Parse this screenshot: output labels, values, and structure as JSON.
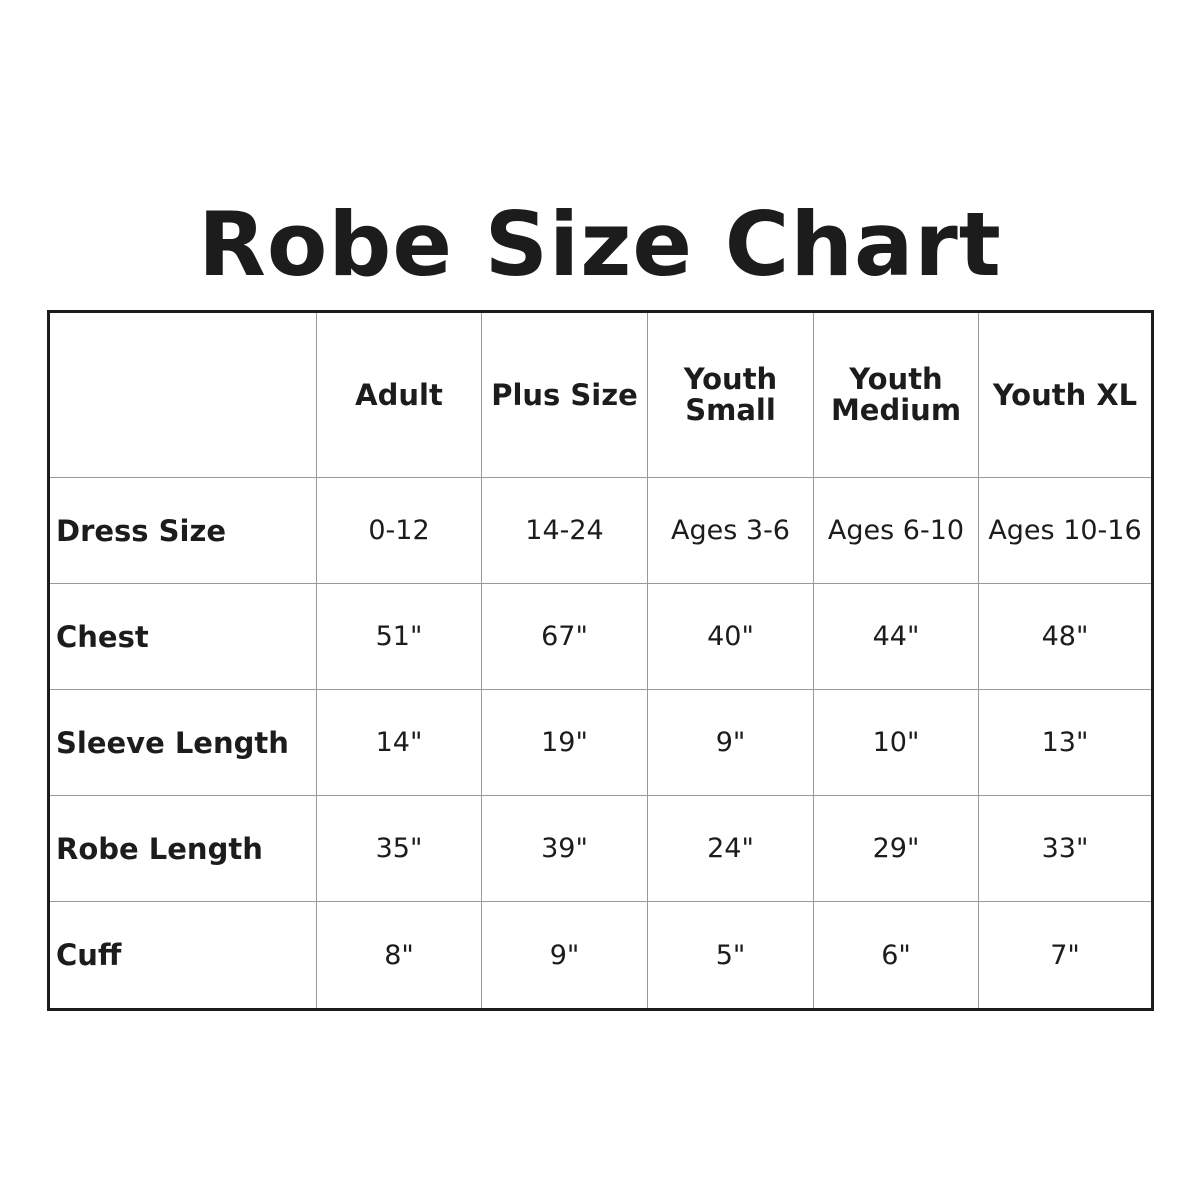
{
  "title": "Robe Size Chart",
  "table": {
    "columns": [
      "",
      "Adult",
      "Plus Size",
      "Youth Small",
      "Youth Medium",
      "Youth XL"
    ],
    "rows": [
      {
        "label": "Dress Size",
        "values": [
          "0-12",
          "14-24",
          "Ages 3-6",
          "Ages 6-10",
          "Ages 10-16"
        ]
      },
      {
        "label": "Chest",
        "values": [
          "51\"",
          "67\"",
          "40\"",
          "44\"",
          "48\""
        ]
      },
      {
        "label": "Sleeve Length",
        "values": [
          "14\"",
          "19\"",
          "9\"",
          "10\"",
          "13\""
        ]
      },
      {
        "label": "Robe Length",
        "values": [
          "35\"",
          "39\"",
          "24\"",
          "29\"",
          "33\""
        ]
      },
      {
        "label": "Cuff",
        "values": [
          "8\"",
          "9\"",
          "5\"",
          "6\"",
          "7\""
        ]
      }
    ]
  }
}
